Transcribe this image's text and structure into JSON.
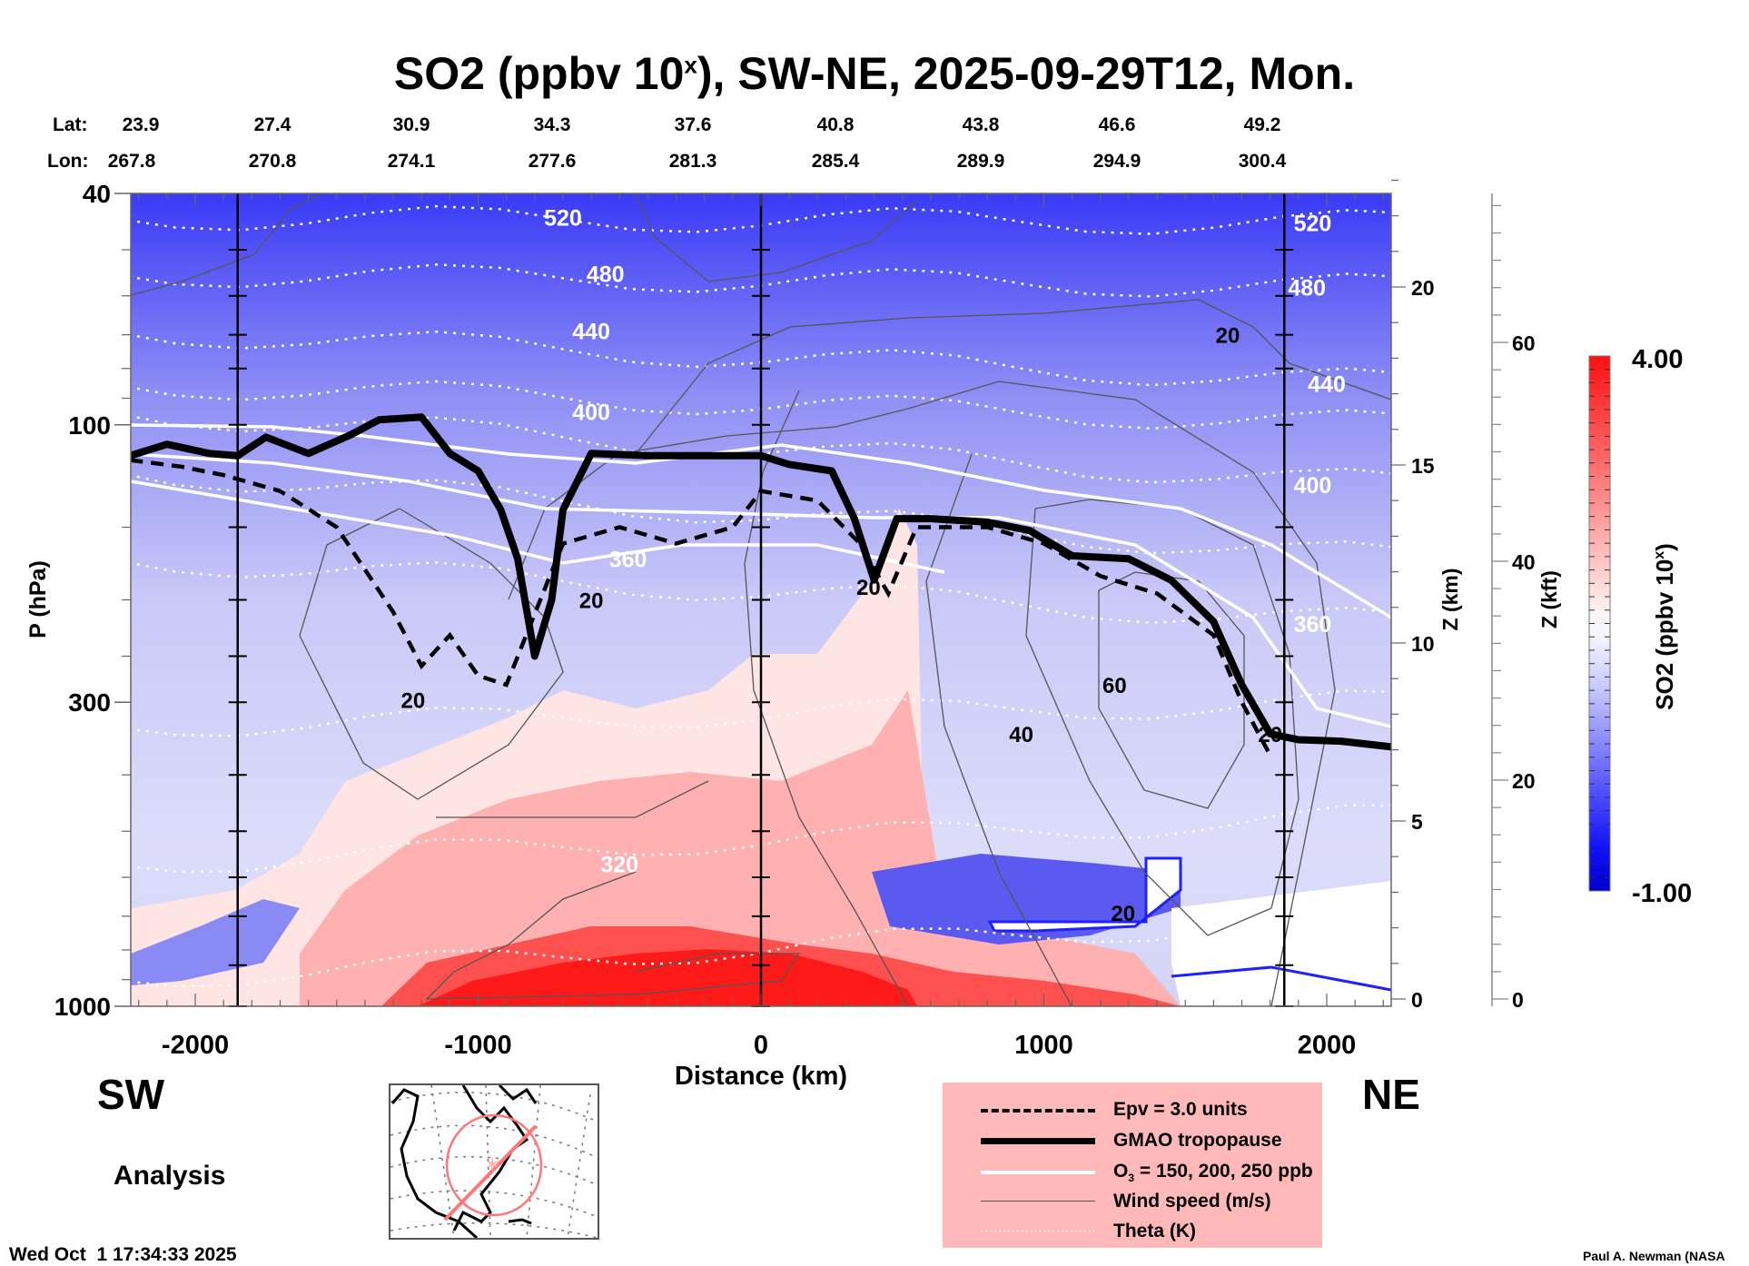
{
  "chart_data": {
    "type": "heatmap",
    "title": "SO2 (ppbv 10",
    "title_sup": "x",
    "title_suffix": "), SW-NE, 2025-09-29T12, Mon.",
    "xlabel": "Distance (km)",
    "ylabel": "P (hPa)",
    "y2label": "Z (km)",
    "y3label": "Z (kft)",
    "xlim": [
      -2230,
      2230
    ],
    "ylim_hpa": [
      1000,
      40
    ],
    "x_ticks": [
      -2000,
      -1000,
      0,
      1000,
      2000
    ],
    "x_tick_labels": [
      "-2000",
      "-1000",
      "0",
      "1000",
      "2000"
    ],
    "y_ticks_hpa": [
      40,
      100,
      300,
      1000
    ],
    "y_tick_labels": [
      "40",
      "100",
      "300",
      "1000"
    ],
    "z_km_ticks": [
      0,
      5,
      10,
      15,
      20
    ],
    "z_km_labels": [
      "0",
      "5",
      "10",
      "15",
      "20"
    ],
    "z_kft_ticks": [
      0,
      20,
      40,
      60
    ],
    "z_kft_labels": [
      "0",
      "20",
      "40",
      "60"
    ],
    "lat_label": "Lat:",
    "lon_label": "Lon:",
    "lat": [
      "23.9",
      "27.4",
      "30.9",
      "34.3",
      "37.6",
      "40.8",
      "43.8",
      "46.6",
      "49.2"
    ],
    "lon": [
      "267.8",
      "270.8",
      "274.1",
      "277.6",
      "281.3",
      "285.4",
      "289.9",
      "294.9",
      "300.4"
    ],
    "latlon_distance_km": [
      -2230,
      -1680,
      -1120,
      -560,
      0,
      560,
      1120,
      1680,
      2230
    ],
    "vertical_markers_km": [
      -1850,
      0,
      1850
    ],
    "colorbar": {
      "label": "SO2 (ppbv 10",
      "label_sup": "x",
      "label_suffix": ")",
      "min": -1.0,
      "max": 4.0,
      "min_label": "-1.00",
      "max_label": "4.00",
      "low_color": "#0000cc",
      "mid_color": "#ffffff",
      "high_color": "#ff0000",
      "levels": 40
    },
    "theta_contours_K": [
      320,
      360,
      400,
      440,
      480,
      520
    ],
    "theta_label_positions": [
      {
        "label": "520",
        "x_km": -700,
        "p": 44
      },
      {
        "label": "480",
        "x_km": -550,
        "p": 55
      },
      {
        "label": "440",
        "x_km": -600,
        "p": 69
      },
      {
        "label": "400",
        "x_km": -600,
        "p": 95
      },
      {
        "label": "360",
        "x_km": -470,
        "p": 170
      },
      {
        "label": "320",
        "x_km": -500,
        "p": 570
      },
      {
        "label": "520",
        "x_km": 1950,
        "p": 45
      },
      {
        "label": "480",
        "x_km": 1930,
        "p": 58
      },
      {
        "label": "440",
        "x_km": 2000,
        "p": 85
      },
      {
        "label": "400",
        "x_km": 1950,
        "p": 127
      },
      {
        "label": "360",
        "x_km": 1950,
        "p": 220
      }
    ],
    "wind_speed_labels": [
      {
        "label": "20",
        "x_km": -1230,
        "p": 297
      },
      {
        "label": "20",
        "x_km": -600,
        "p": 200
      },
      {
        "label": "20",
        "x_km": 380,
        "p": 190
      },
      {
        "label": "40",
        "x_km": 920,
        "p": 340
      },
      {
        "label": "60",
        "x_km": 1250,
        "p": 280
      },
      {
        "label": "20",
        "x_km": 1650,
        "p": 70
      },
      {
        "label": "20",
        "x_km": 1800,
        "p": 340
      },
      {
        "label": "20",
        "x_km": 1280,
        "p": 690
      }
    ],
    "tropopause_hpa": [
      [
        -2230,
        113
      ],
      [
        -2100,
        108
      ],
      [
        -1950,
        112
      ],
      [
        -1850,
        113
      ],
      [
        -1750,
        105
      ],
      [
        -1600,
        112
      ],
      [
        -1450,
        104
      ],
      [
        -1350,
        98
      ],
      [
        -1200,
        97
      ],
      [
        -1100,
        112
      ],
      [
        -1000,
        120
      ],
      [
        -920,
        140
      ],
      [
        -860,
        170
      ],
      [
        -800,
        250
      ],
      [
        -740,
        200
      ],
      [
        -700,
        140
      ],
      [
        -600,
        112
      ],
      [
        -400,
        113
      ],
      [
        -200,
        113
      ],
      [
        0,
        113
      ],
      [
        100,
        117
      ],
      [
        250,
        120
      ],
      [
        330,
        145
      ],
      [
        400,
        185
      ],
      [
        480,
        145
      ],
      [
        600,
        145
      ],
      [
        800,
        147
      ],
      [
        950,
        152
      ],
      [
        1100,
        168
      ],
      [
        1300,
        170
      ],
      [
        1450,
        185
      ],
      [
        1600,
        218
      ],
      [
        1700,
        280
      ],
      [
        1800,
        340
      ],
      [
        1900,
        348
      ],
      [
        2050,
        350
      ],
      [
        2230,
        358
      ]
    ],
    "epv_3_hpa": [
      [
        -2230,
        115
      ],
      [
        -2050,
        118
      ],
      [
        -1900,
        122
      ],
      [
        -1700,
        130
      ],
      [
        -1500,
        150
      ],
      [
        -1300,
        210
      ],
      [
        -1200,
        260
      ],
      [
        -1100,
        230
      ],
      [
        -1000,
        270
      ],
      [
        -900,
        280
      ],
      [
        -780,
        200
      ],
      [
        -700,
        160
      ],
      [
        -500,
        150
      ],
      [
        -300,
        160
      ],
      [
        -100,
        150
      ],
      [
        0,
        130
      ],
      [
        200,
        135
      ],
      [
        350,
        160
      ],
      [
        450,
        195
      ],
      [
        550,
        150
      ],
      [
        800,
        150
      ],
      [
        1000,
        160
      ],
      [
        1200,
        182
      ],
      [
        1400,
        195
      ],
      [
        1600,
        230
      ],
      [
        1700,
        300
      ],
      [
        1800,
        370
      ]
    ],
    "legend": [
      {
        "label": "Epv = 3.0 units",
        "style": "dashed-thick"
      },
      {
        "label": "GMAO tropopause",
        "style": "solid-thick"
      },
      {
        "label": "O3 = 150, 200, 250 ppb",
        "style": "solid-white"
      },
      {
        "label": "Wind speed (m/s)",
        "style": "thin-gray"
      },
      {
        "label": "Theta (K)",
        "style": "dotted-white"
      }
    ],
    "legend_placement": "bottom-center-right"
  },
  "labels": {
    "sw": "SW",
    "ne": "NE",
    "analysis": "Analysis",
    "timestamp": "Wed Oct  1 17:34:33 2025",
    "credit": "Paul A. Newman (NASA",
    "legend_o3_prefix": "O",
    "legend_o3_sub": "3",
    "legend_o3_suffix": " = 150, 200, 250 ppb"
  },
  "colors": {
    "legend_bg": "#ffb9b9",
    "map_track": "#ff7777"
  }
}
